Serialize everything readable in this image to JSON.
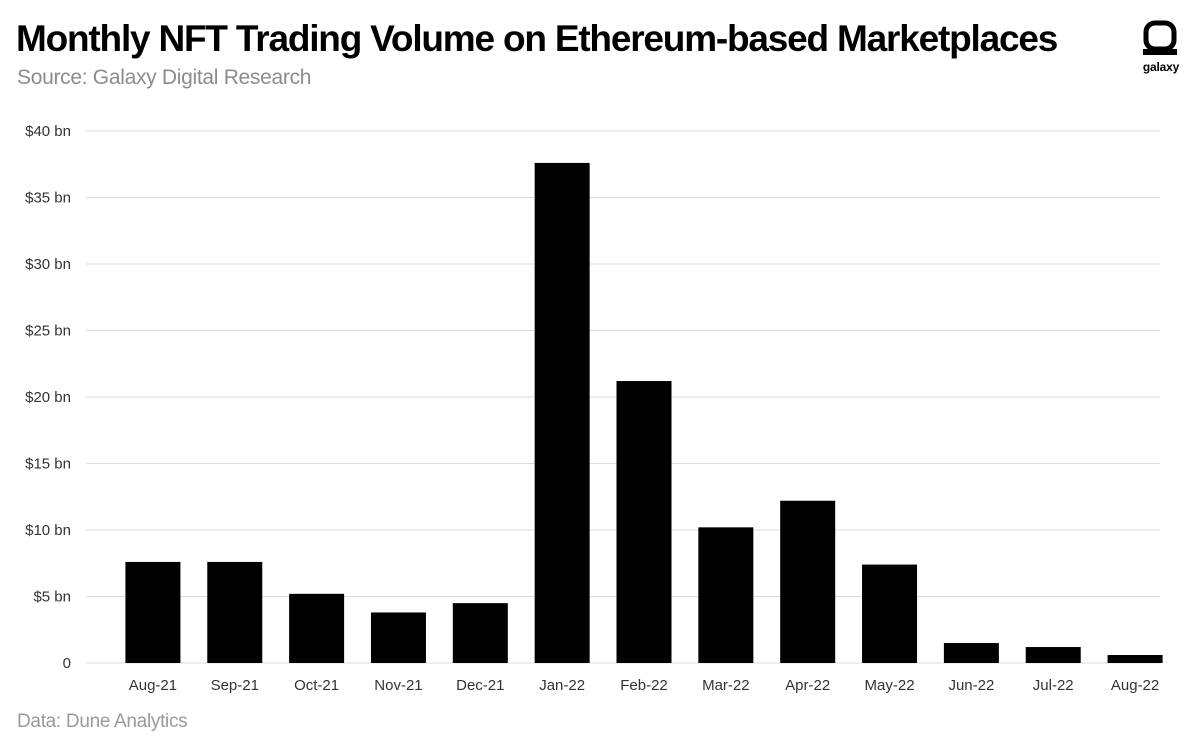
{
  "header": {
    "title": "Monthly NFT Trading Volume on Ethereum-based Marketplaces",
    "subtitle": "Source: Galaxy Digital Research"
  },
  "logo": {
    "text": "galaxy",
    "icon": "galaxy-logo-icon"
  },
  "footer": {
    "note": "Data: Dune Analytics"
  },
  "colors": {
    "bar": "#000000",
    "grid": "#dcdcdc",
    "axis_text": "#333333",
    "subtitle": "#8c8c8c"
  },
  "chart_data": {
    "type": "bar",
    "title": "Monthly NFT Trading Volume on Ethereum-based Marketplaces",
    "xlabel": "",
    "ylabel": "",
    "categories": [
      "Aug-21",
      "Sep-21",
      "Oct-21",
      "Nov-21",
      "Dec-21",
      "Jan-22",
      "Feb-22",
      "Mar-22",
      "Apr-22",
      "May-22",
      "Jun-22",
      "Jul-22",
      "Aug-22"
    ],
    "values": [
      7.6,
      7.6,
      5.2,
      3.8,
      4.5,
      37.6,
      21.2,
      10.2,
      12.2,
      7.4,
      1.5,
      1.2,
      0.6
    ],
    "unit": "bn",
    "ylim": [
      0,
      40
    ],
    "yticks": [
      0,
      5,
      10,
      15,
      20,
      25,
      30,
      35,
      40
    ],
    "ytick_labels": [
      "0",
      "$5 bn",
      "$10 bn",
      "$15 bn",
      "$20 bn",
      "$25 bn",
      "$30 bn",
      "$35 bn",
      "$40 bn"
    ],
    "grid": true,
    "legend": "none"
  }
}
